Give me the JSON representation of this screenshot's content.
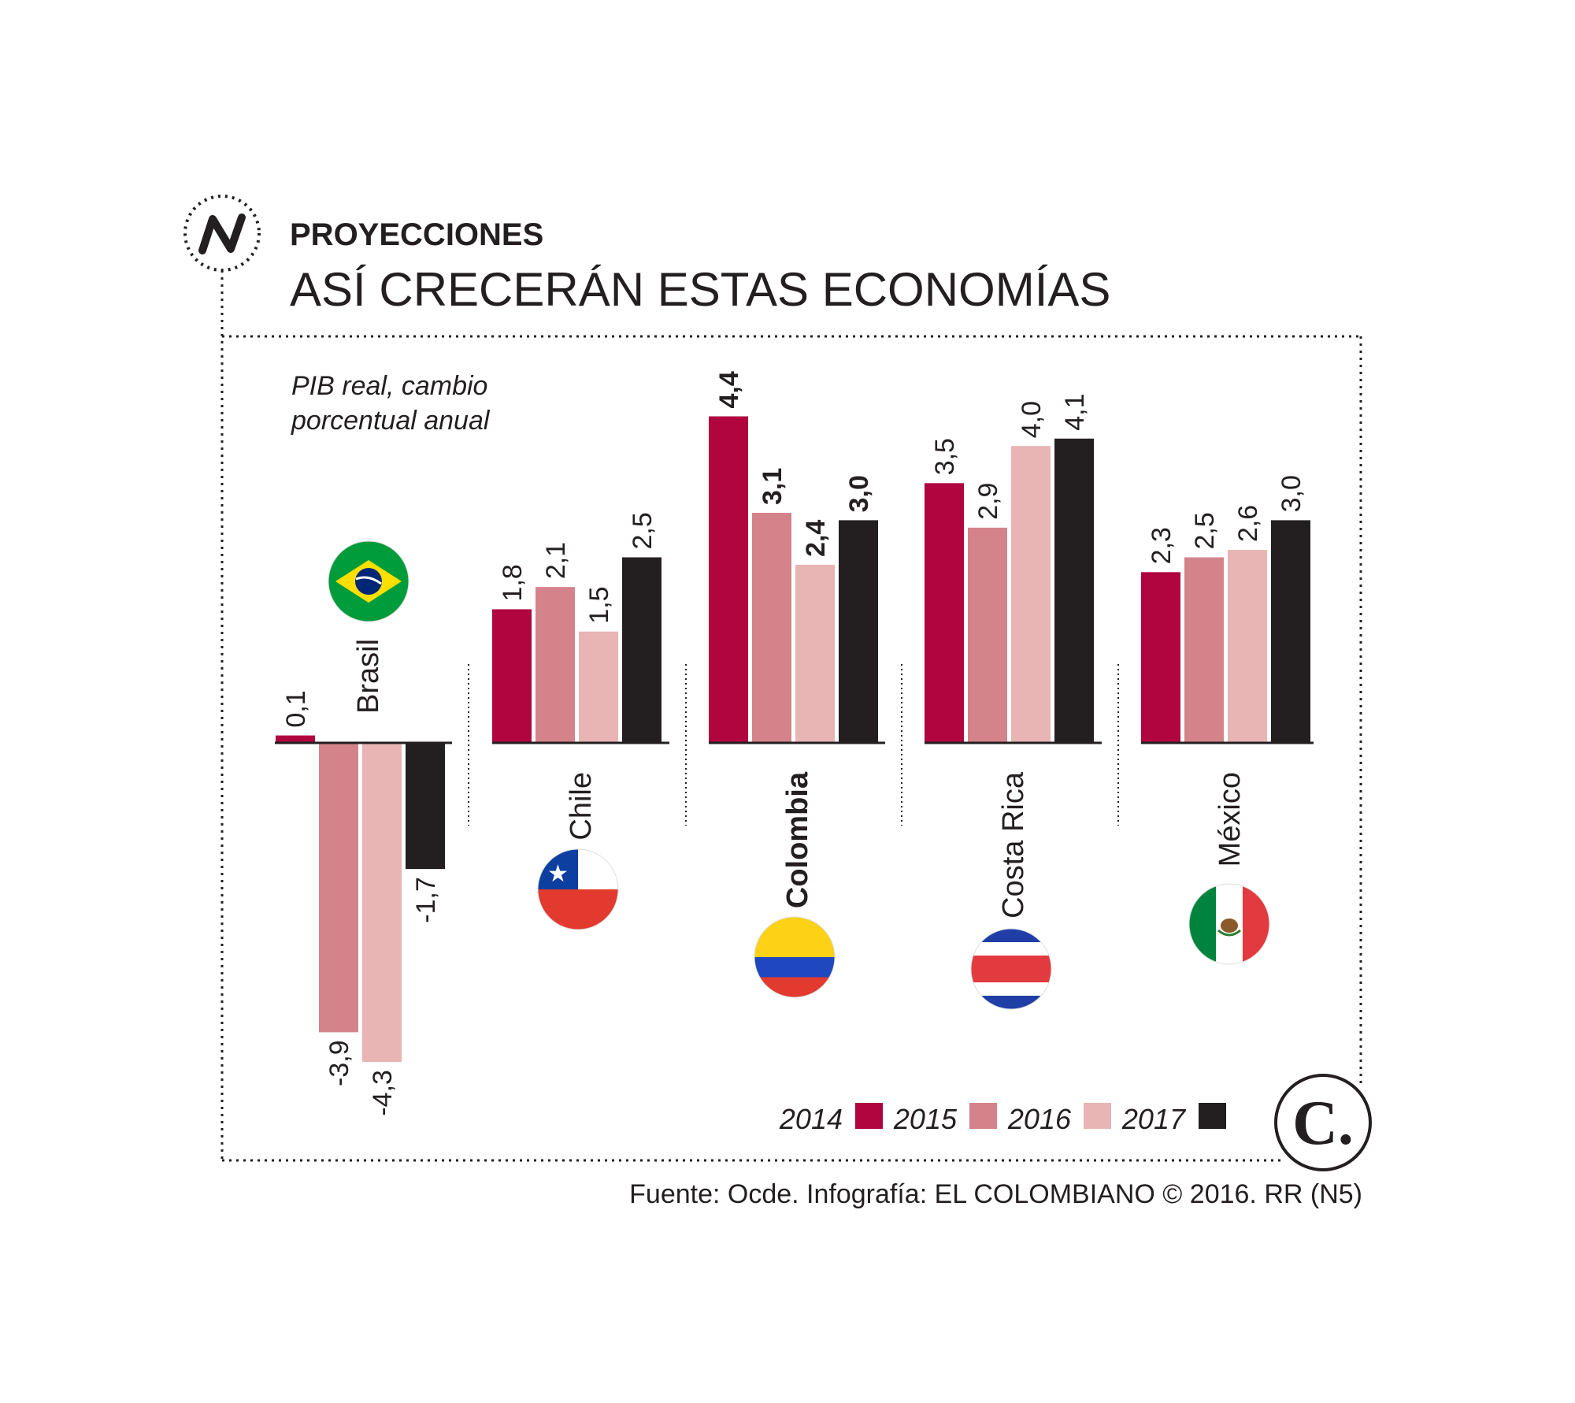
{
  "header": {
    "kicker": "PROYECCIONES",
    "title": "ASÍ CRECERÁN ESTAS ECONOMÍAS",
    "logo_letter": "N"
  },
  "chart_data": {
    "type": "bar",
    "subtitle_line1": "PIB real, cambio",
    "subtitle_line2": "porcentual anual",
    "categories": [
      "Brasil",
      "Chile",
      "Colombia",
      "Costa Rica",
      "México"
    ],
    "highlight_category": "Colombia",
    "series": [
      {
        "name": "2014",
        "color": "#b0053f",
        "values": [
          0.1,
          1.8,
          4.4,
          3.5,
          2.3
        ]
      },
      {
        "name": "2015",
        "color": "#d4838a",
        "values": [
          -3.9,
          2.1,
          3.1,
          2.9,
          2.5
        ]
      },
      {
        "name": "2016",
        "color": "#e8b4b4",
        "values": [
          -4.3,
          1.5,
          2.4,
          4.0,
          2.6
        ]
      },
      {
        "name": "2017",
        "color": "#231f20",
        "values": [
          -1.7,
          2.5,
          3.0,
          4.1,
          3.0
        ]
      }
    ],
    "value_labels": [
      [
        "0,1",
        "-3,9",
        "-4,3",
        "-1,7"
      ],
      [
        "1,8",
        "2,1",
        "1,5",
        "2,5"
      ],
      [
        "4,4",
        "3,1",
        "2,4",
        "3,0"
      ],
      [
        "3,5",
        "2,9",
        "4,0",
        "4,1"
      ],
      [
        "2,3",
        "2,5",
        "2,6",
        "3,0"
      ]
    ],
    "flags": [
      "brazil-flag-icon",
      "chile-flag-icon",
      "colombia-flag-icon",
      "costa-rica-flag-icon",
      "mexico-flag-icon"
    ],
    "legend_position": "bottom-right"
  },
  "footer": {
    "source": "Fuente: Ocde. Infografía: EL COLOMBIANO © 2016. RR (N5)",
    "brand_mark": "C."
  }
}
